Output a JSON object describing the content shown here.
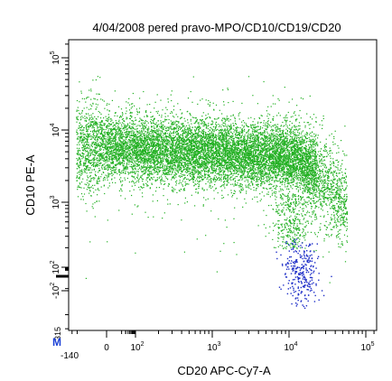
{
  "chart_data": {
    "type": "scatter",
    "title": "4/04/2008 pered pravo-MPO/CD10/CD19/CD20",
    "xlabel": "CD20 APC-Cy7-A",
    "ylabel": "CD10 PE-A",
    "x_scale": "biexponential",
    "y_scale": "biexponential",
    "xlim": [
      -140,
      250000
    ],
    "ylim": [
      -315,
      250000
    ],
    "x_ticks": [
      {
        "value": 0,
        "label": "0"
      },
      {
        "value": 100,
        "label": "10^2"
      },
      {
        "value": 1000,
        "label": "10^3"
      },
      {
        "value": 10000,
        "label": "10^4"
      },
      {
        "value": 100000,
        "label": "10^5"
      }
    ],
    "x_min_label": "-140",
    "y_ticks": [
      {
        "value": -100,
        "label": "-10^2"
      },
      {
        "value": 100,
        "label": "10^2"
      },
      {
        "value": 1000,
        "label": "10^3"
      },
      {
        "value": 10000,
        "label": "10^4"
      },
      {
        "value": 100000,
        "label": "10^5"
      }
    ],
    "y_min_label": "-315",
    "corner_marker": "M",
    "grid": false,
    "series": [
      {
        "color": "#22b022",
        "approx_event_count": 16000,
        "x_range": [
          10,
          60000
        ],
        "y_range": [
          400,
          40000
        ],
        "y_center": 4000
      },
      {
        "color": "#2030c8",
        "approx_event_count": 300,
        "x_range": [
          8000,
          30000
        ],
        "y_range": [
          -150,
          800
        ],
        "y_center": 50
      }
    ]
  }
}
